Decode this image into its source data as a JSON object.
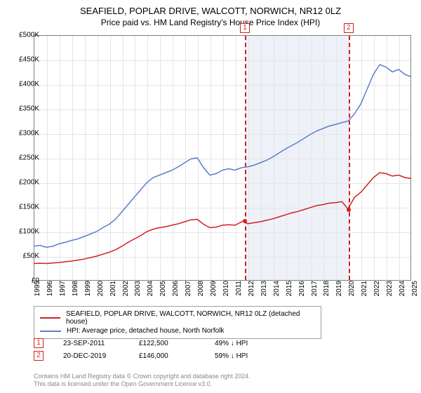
{
  "title": "SEAFIELD, POPLAR DRIVE, WALCOTT, NORWICH, NR12 0LZ",
  "subtitle": "Price paid vs. HM Land Registry's House Price Index (HPI)",
  "chart": {
    "type": "line",
    "background_color": "#ffffff",
    "grid_color": "#e5e5e5",
    "border_color": "#808080",
    "shaded_color": "#eef1f7",
    "ylim": [
      0,
      500000
    ],
    "ytick_step": 50000,
    "yticks": [
      "£0",
      "£50K",
      "£100K",
      "£150K",
      "£200K",
      "£250K",
      "£300K",
      "£350K",
      "£400K",
      "£450K",
      "£500K"
    ],
    "x_start_year": 1995,
    "x_end_year": 2025,
    "xticks": [
      1995,
      1996,
      1997,
      1998,
      1999,
      2000,
      2001,
      2002,
      2003,
      2004,
      2005,
      2006,
      2007,
      2008,
      2009,
      2010,
      2011,
      2012,
      2013,
      2014,
      2015,
      2016,
      2017,
      2018,
      2019,
      2020,
      2021,
      2022,
      2023,
      2024,
      2025
    ],
    "series_hpi": {
      "color": "#5b7fc7",
      "width": 1.5,
      "data": [
        [
          1995.0,
          70000
        ],
        [
          1995.5,
          72000
        ],
        [
          1996.0,
          68000
        ],
        [
          1996.5,
          70000
        ],
        [
          1997.0,
          75000
        ],
        [
          1997.5,
          78000
        ],
        [
          1998.0,
          82000
        ],
        [
          1998.5,
          85000
        ],
        [
          1999.0,
          90000
        ],
        [
          1999.5,
          95000
        ],
        [
          2000.0,
          100000
        ],
        [
          2000.5,
          108000
        ],
        [
          2001.0,
          115000
        ],
        [
          2001.5,
          125000
        ],
        [
          2002.0,
          140000
        ],
        [
          2002.5,
          155000
        ],
        [
          2003.0,
          170000
        ],
        [
          2003.5,
          185000
        ],
        [
          2004.0,
          200000
        ],
        [
          2004.5,
          210000
        ],
        [
          2005.0,
          215000
        ],
        [
          2005.5,
          220000
        ],
        [
          2006.0,
          225000
        ],
        [
          2006.5,
          232000
        ],
        [
          2007.0,
          240000
        ],
        [
          2007.5,
          248000
        ],
        [
          2008.0,
          250000
        ],
        [
          2008.5,
          230000
        ],
        [
          2009.0,
          215000
        ],
        [
          2009.5,
          218000
        ],
        [
          2010.0,
          225000
        ],
        [
          2010.5,
          228000
        ],
        [
          2011.0,
          225000
        ],
        [
          2011.5,
          230000
        ],
        [
          2012.0,
          232000
        ],
        [
          2012.5,
          235000
        ],
        [
          2013.0,
          240000
        ],
        [
          2013.5,
          245000
        ],
        [
          2014.0,
          252000
        ],
        [
          2014.5,
          260000
        ],
        [
          2015.0,
          268000
        ],
        [
          2015.5,
          275000
        ],
        [
          2016.0,
          282000
        ],
        [
          2016.5,
          290000
        ],
        [
          2017.0,
          298000
        ],
        [
          2017.5,
          305000
        ],
        [
          2018.0,
          310000
        ],
        [
          2018.5,
          315000
        ],
        [
          2019.0,
          318000
        ],
        [
          2019.5,
          322000
        ],
        [
          2020.0,
          325000
        ],
        [
          2020.5,
          340000
        ],
        [
          2021.0,
          360000
        ],
        [
          2021.5,
          390000
        ],
        [
          2022.0,
          420000
        ],
        [
          2022.5,
          440000
        ],
        [
          2023.0,
          435000
        ],
        [
          2023.5,
          425000
        ],
        [
          2024.0,
          430000
        ],
        [
          2024.5,
          420000
        ],
        [
          2025.0,
          415000
        ]
      ]
    },
    "series_property": {
      "color": "#d02020",
      "width": 1.5,
      "data": [
        [
          1995.0,
          35000
        ],
        [
          1995.5,
          35500
        ],
        [
          1996.0,
          35000
        ],
        [
          1996.5,
          36000
        ],
        [
          1997.0,
          37000
        ],
        [
          1997.5,
          38500
        ],
        [
          1998.0,
          40000
        ],
        [
          1998.5,
          42000
        ],
        [
          1999.0,
          44000
        ],
        [
          1999.5,
          47000
        ],
        [
          2000.0,
          50000
        ],
        [
          2000.5,
          54000
        ],
        [
          2001.0,
          58000
        ],
        [
          2001.5,
          63000
        ],
        [
          2002.0,
          70000
        ],
        [
          2002.5,
          78000
        ],
        [
          2003.0,
          85000
        ],
        [
          2003.5,
          92000
        ],
        [
          2004.0,
          100000
        ],
        [
          2004.5,
          105000
        ],
        [
          2005.0,
          108000
        ],
        [
          2005.5,
          110000
        ],
        [
          2006.0,
          113000
        ],
        [
          2006.5,
          116000
        ],
        [
          2007.0,
          120000
        ],
        [
          2007.5,
          124000
        ],
        [
          2008.0,
          125000
        ],
        [
          2008.5,
          115000
        ],
        [
          2009.0,
          108000
        ],
        [
          2009.5,
          109000
        ],
        [
          2010.0,
          113000
        ],
        [
          2010.5,
          114000
        ],
        [
          2011.0,
          113000
        ],
        [
          2011.73,
          122500
        ],
        [
          2012.0,
          116000
        ],
        [
          2012.5,
          118000
        ],
        [
          2013.0,
          120000
        ],
        [
          2013.5,
          123000
        ],
        [
          2014.0,
          126000
        ],
        [
          2014.5,
          130000
        ],
        [
          2015.0,
          134000
        ],
        [
          2015.5,
          138000
        ],
        [
          2016.0,
          141000
        ],
        [
          2016.5,
          145000
        ],
        [
          2017.0,
          149000
        ],
        [
          2017.5,
          153000
        ],
        [
          2018.0,
          155000
        ],
        [
          2018.5,
          158000
        ],
        [
          2019.0,
          159000
        ],
        [
          2019.5,
          161000
        ],
        [
          2019.97,
          146000
        ],
        [
          2020.5,
          170000
        ],
        [
          2021.0,
          180000
        ],
        [
          2021.5,
          195000
        ],
        [
          2022.0,
          210000
        ],
        [
          2022.5,
          220000
        ],
        [
          2023.0,
          218000
        ],
        [
          2023.5,
          213000
        ],
        [
          2024.0,
          215000
        ],
        [
          2024.5,
          210000
        ],
        [
          2025.0,
          208000
        ]
      ]
    },
    "events": [
      {
        "n": 1,
        "year": 2011.73,
        "line_color": "#d02020",
        "border_color": "#d02020"
      },
      {
        "n": 2,
        "year": 2019.97,
        "line_color": "#d02020",
        "border_color": "#d02020"
      }
    ],
    "price_dots": [
      {
        "year": 2011.73,
        "value": 122500,
        "color": "#d02020"
      },
      {
        "year": 2019.97,
        "value": 146000,
        "color": "#d02020"
      }
    ]
  },
  "legend": {
    "rows": [
      {
        "color": "#d02020",
        "label": "SEAFIELD, POPLAR DRIVE, WALCOTT, NORWICH, NR12 0LZ (detached house)"
      },
      {
        "color": "#5b7fc7",
        "label": "HPI: Average price, detached house, North Norfolk"
      }
    ]
  },
  "event_table": {
    "rows": [
      {
        "n": "1",
        "color": "#d02020",
        "date": "23-SEP-2011",
        "price": "£122,500",
        "delta": "49% ↓ HPI"
      },
      {
        "n": "2",
        "color": "#d02020",
        "date": "20-DEC-2019",
        "price": "£146,000",
        "delta": "59% ↓ HPI"
      }
    ]
  },
  "footer": {
    "line1": "Contains HM Land Registry data © Crown copyright and database right 2024.",
    "line2": "This data is licensed under the Open Government Licence v3.0."
  }
}
